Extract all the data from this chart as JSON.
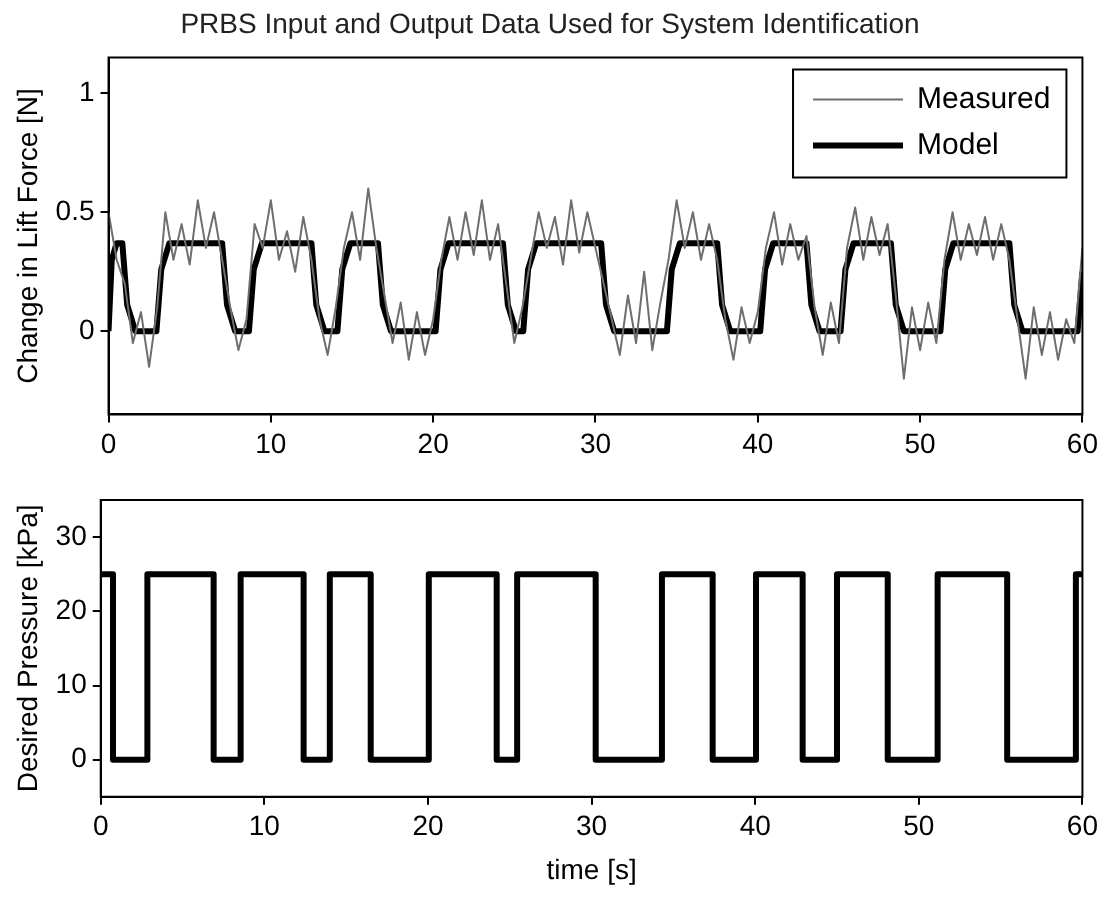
{
  "chart_data": [
    {
      "type": "line",
      "title": "PRBS Input and Output Data Used for System Identification",
      "ylabel": "Change in Lift Force [N]",
      "xlim": [
        0,
        60
      ],
      "xticks": [
        0,
        10,
        20,
        30,
        40,
        50,
        60
      ],
      "ylim": [
        -0.35,
        1.15
      ],
      "yticks": [
        0,
        0.5,
        1
      ],
      "grid": false,
      "legend": "top right",
      "marker": "none",
      "line_style": "solid",
      "series": [
        {
          "name": "Measured",
          "color": "#6e6e6e",
          "x": [
            0,
            0.5,
            1,
            1.5,
            2,
            2.5,
            3,
            3.5,
            4,
            4.5,
            5,
            5.5,
            6,
            6.5,
            7,
            7.5,
            8,
            8.5,
            9,
            9.5,
            10,
            10.5,
            11,
            11.5,
            12,
            12.5,
            13,
            13.5,
            14,
            14.5,
            15,
            15.5,
            16,
            16.5,
            17,
            17.5,
            18,
            18.5,
            19,
            19.5,
            20,
            20.5,
            21,
            21.5,
            22,
            22.5,
            23,
            23.5,
            24,
            24.5,
            25,
            25.5,
            26,
            26.5,
            27,
            27.5,
            28,
            28.5,
            29,
            29.5,
            30,
            30.5,
            31,
            31.5,
            32,
            32.5,
            33,
            33.5,
            34,
            34.5,
            35,
            35.5,
            36,
            36.5,
            37,
            37.5,
            38,
            38.5,
            39,
            39.5,
            40,
            40.5,
            41,
            41.5,
            42,
            42.5,
            43,
            43.5,
            44,
            44.5,
            45,
            45.5,
            46,
            46.5,
            47,
            47.5,
            48,
            48.5,
            49,
            49.5,
            50,
            50.5,
            51,
            51.5,
            52,
            52.5,
            53,
            53.5,
            54,
            54.5,
            55,
            55.5,
            56,
            56.5,
            57,
            57.5,
            58,
            58.5,
            59,
            59.5,
            60
          ],
          "values": [
            0.5,
            0.3,
            0.2,
            -0.05,
            0.08,
            -0.15,
            0.1,
            0.5,
            0.3,
            0.45,
            0.28,
            0.55,
            0.35,
            0.5,
            0.3,
            0.1,
            -0.08,
            0.05,
            0.45,
            0.35,
            0.55,
            0.3,
            0.42,
            0.25,
            0.48,
            0.3,
            0.05,
            -0.1,
            0.1,
            0.35,
            0.5,
            0.3,
            0.6,
            0.35,
            0.15,
            -0.05,
            0.12,
            -0.12,
            0.08,
            -0.1,
            0.05,
            0.3,
            0.48,
            0.3,
            0.5,
            0.32,
            0.55,
            0.3,
            0.45,
            0.2,
            -0.05,
            0.1,
            0.3,
            0.5,
            0.35,
            0.48,
            0.28,
            0.55,
            0.33,
            0.5,
            0.35,
            0.2,
            0.05,
            -0.1,
            0.15,
            -0.05,
            0.25,
            -0.08,
            0.12,
            0.3,
            0.55,
            0.35,
            0.5,
            0.3,
            0.45,
            0.3,
            0.05,
            -0.12,
            0.1,
            -0.05,
            0.08,
            0.35,
            0.5,
            0.28,
            0.45,
            0.3,
            0.4,
            0.1,
            -0.1,
            0.12,
            -0.05,
            0.35,
            0.52,
            0.3,
            0.48,
            0.32,
            0.45,
            0.15,
            -0.2,
            0.1,
            -0.08,
            0.12,
            -0.05,
            0.3,
            0.5,
            0.3,
            0.45,
            0.32,
            0.48,
            0.3,
            0.45,
            0.3,
            0.05,
            -0.2,
            0.1,
            -0.1,
            0.08,
            -0.12,
            0.05,
            -0.05,
            0.35
          ]
        },
        {
          "name": "Model",
          "color": "#000000",
          "x": [
            0,
            0.2,
            0.5,
            0.85,
            1.15,
            1.65,
            2.95,
            3.25,
            3.75,
            7,
            7.3,
            7.8,
            8.65,
            8.95,
            9.45,
            12.5,
            12.8,
            13.3,
            14.1,
            14.4,
            14.9,
            16.6,
            16.9,
            17.4,
            20.15,
            20.45,
            20.95,
            24.3,
            24.6,
            25.1,
            25.55,
            25.85,
            26.35,
            30.35,
            30.65,
            31.15,
            34.4,
            34.7,
            35.2,
            37.5,
            37.8,
            38.3,
            40.15,
            40.45,
            40.95,
            43,
            43.3,
            43.8,
            45.1,
            45.4,
            45.9,
            48.2,
            48.5,
            49,
            51.25,
            51.55,
            52.05,
            55.5,
            55.8,
            56.3,
            59.7,
            60
          ],
          "values": [
            0,
            0.3,
            0.37,
            0.37,
            0.11,
            0,
            0,
            0.26,
            0.37,
            0.37,
            0.11,
            0,
            0,
            0.26,
            0.37,
            0.37,
            0.11,
            0,
            0,
            0.26,
            0.37,
            0.37,
            0.11,
            0,
            0,
            0.26,
            0.37,
            0.37,
            0.11,
            0,
            0,
            0.26,
            0.37,
            0.37,
            0.11,
            0,
            0,
            0.26,
            0.37,
            0.37,
            0.11,
            0,
            0,
            0.26,
            0.37,
            0.37,
            0.11,
            0,
            0,
            0.26,
            0.37,
            0.37,
            0.11,
            0,
            0,
            0.26,
            0.37,
            0.37,
            0.11,
            0,
            0,
            0.25
          ]
        }
      ]
    },
    {
      "type": "step",
      "xlabel": "time [s]",
      "ylabel": "Desired Pressure [kPa]",
      "xlim": [
        0,
        60
      ],
      "xticks": [
        0,
        10,
        20,
        30,
        40,
        50,
        60
      ],
      "ylim": [
        -5,
        35
      ],
      "yticks": [
        0,
        10,
        20,
        30
      ],
      "grid": false,
      "legend": false,
      "marker": "none",
      "line_style": "solid",
      "series": [
        {
          "color": "#000000",
          "x": [
            0,
            0.75,
            2.85,
            6.9,
            8.55,
            12.4,
            14,
            16.5,
            20.05,
            24.2,
            25.45,
            30.25,
            34.3,
            37.4,
            40.05,
            42.9,
            45,
            48.1,
            51.15,
            55.4,
            59.6,
            60
          ],
          "values": [
            25,
            0,
            25,
            0,
            25,
            0,
            25,
            0,
            25,
            0,
            25,
            0,
            25,
            0,
            25,
            0,
            25,
            0,
            25,
            0,
            25,
            25
          ]
        }
      ]
    }
  ]
}
